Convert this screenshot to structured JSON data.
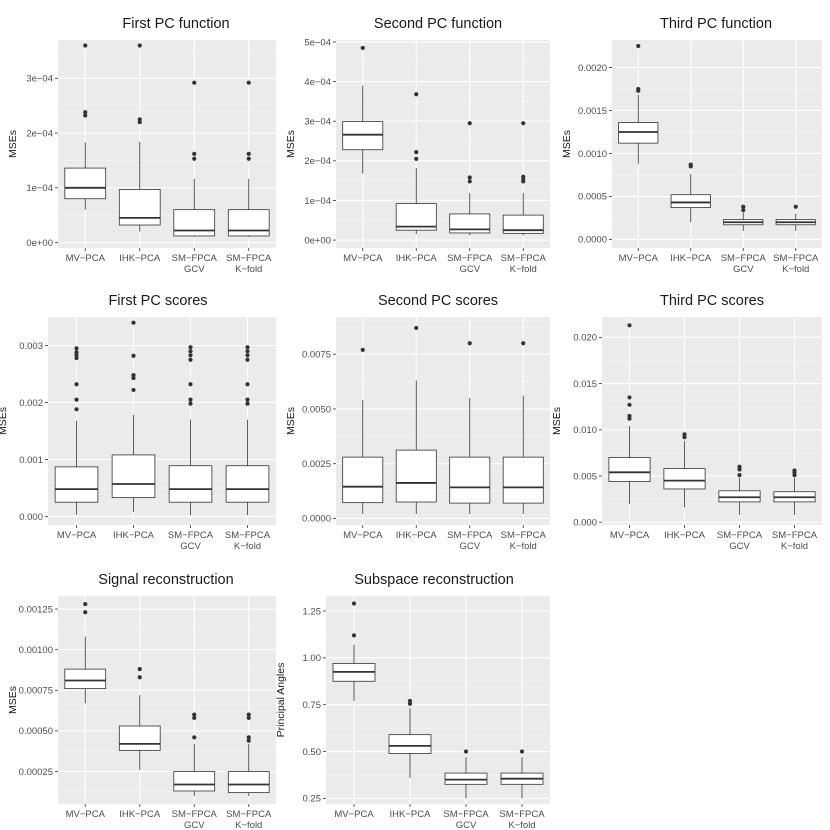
{
  "figure": {
    "colors": {
      "panel_bg": "#EBEBEB",
      "grid_major": "#FFFFFF",
      "box_fill": "#FFFFFF",
      "box_line": "#333333",
      "outlier": "#333333"
    }
  },
  "chart_data": [
    {
      "type": "boxplot",
      "title": "First PC function",
      "ylabel": "MSEs",
      "ylim": [
        -1e-05,
        0.00037
      ],
      "yticks": [
        0,
        0.0001,
        0.0002,
        0.0003
      ],
      "yticklabels": [
        "0e+00",
        "1e−04",
        "2e−04",
        "3e−04"
      ],
      "categories": [
        [
          "MV−PCA"
        ],
        [
          "IHK−PCA"
        ],
        [
          "SM−FPCA",
          "GCV"
        ],
        [
          "SM−FPCA",
          "K−fold"
        ]
      ],
      "boxes": [
        {
          "whisker_low": 6e-05,
          "q1": 8e-05,
          "median": 0.0001,
          "q3": 0.000136,
          "whisker_high": 0.000183,
          "outliers": [
            0.000232,
            0.000238,
            0.00036
          ]
        },
        {
          "whisker_low": 2e-05,
          "q1": 3.2e-05,
          "median": 4.5e-05,
          "q3": 9.7e-05,
          "whisker_high": 0.000184,
          "outliers": [
            0.00022,
            0.000225,
            0.00036
          ]
        },
        {
          "whisker_low": 1e-05,
          "q1": 1.2e-05,
          "median": 2.2e-05,
          "q3": 6e-05,
          "whisker_high": 0.000116,
          "outliers": [
            0.000153,
            0.000162,
            0.000292
          ]
        },
        {
          "whisker_low": 1e-05,
          "q1": 1.2e-05,
          "median": 2.2e-05,
          "q3": 6e-05,
          "whisker_high": 0.000116,
          "outliers": [
            0.000153,
            0.000162,
            0.000292
          ]
        }
      ]
    },
    {
      "type": "boxplot",
      "title": "Second PC function",
      "ylabel": "MSEs",
      "ylim": [
        -2e-05,
        0.000505
      ],
      "yticks": [
        0,
        0.0001,
        0.0002,
        0.0003,
        0.0004,
        0.0005
      ],
      "yticklabels": [
        "0e+00",
        "1e−04",
        "2e−04",
        "3e−04",
        "4e−04",
        "5e−04"
      ],
      "categories": [
        [
          "MV−PCA"
        ],
        [
          "IHK−PCA"
        ],
        [
          "SM−FPCA",
          "GCV"
        ],
        [
          "SM−FPCA",
          "K−fold"
        ]
      ],
      "boxes": [
        {
          "whisker_low": 0.000168,
          "q1": 0.000228,
          "median": 0.000266,
          "q3": 0.000299,
          "whisker_high": 0.00039,
          "outliers": [
            0.000485
          ]
        },
        {
          "whisker_low": 1.5e-05,
          "q1": 2.5e-05,
          "median": 3.4e-05,
          "q3": 9.2e-05,
          "whisker_high": 0.000182,
          "outliers": [
            0.000205,
            0.000222,
            0.000368
          ]
        },
        {
          "whisker_low": 1.2e-05,
          "q1": 1.8e-05,
          "median": 2.7e-05,
          "q3": 6.6e-05,
          "whisker_high": 0.000119,
          "outliers": [
            0.000148,
            0.000158,
            0.000295
          ]
        },
        {
          "whisker_low": 1.2e-05,
          "q1": 1.7e-05,
          "median": 2.5e-05,
          "q3": 6.3e-05,
          "whisker_high": 0.000119,
          "outliers": [
            0.000148,
            0.000153,
            0.00016,
            0.000295
          ]
        }
      ]
    },
    {
      "type": "boxplot",
      "title": "Third PC function",
      "ylabel": "MSEs",
      "ylim": [
        -0.0001,
        0.00232
      ],
      "yticks": [
        0,
        0.0005,
        0.001,
        0.0015,
        0.002
      ],
      "yticklabels": [
        "0.0000",
        "0.0005",
        "0.0010",
        "0.0015",
        "0.0020"
      ],
      "categories": [
        [
          "MV−PCA"
        ],
        [
          "IHK−PCA"
        ],
        [
          "SM−FPCA",
          "GCV"
        ],
        [
          "SM−FPCA",
          "K−fold"
        ]
      ],
      "boxes": [
        {
          "whisker_low": 0.00088,
          "q1": 0.00112,
          "median": 0.00125,
          "q3": 0.00136,
          "whisker_high": 0.00168,
          "outliers": [
            0.00173,
            0.00175,
            0.00225
          ]
        },
        {
          "whisker_low": 0.0002,
          "q1": 0.00037,
          "median": 0.00043,
          "q3": 0.00052,
          "whisker_high": 0.00076,
          "outliers": [
            0.00085,
            0.00087
          ]
        },
        {
          "whisker_low": 0.0001,
          "q1": 0.00017,
          "median": 0.0002,
          "q3": 0.00023,
          "whisker_high": 0.00031,
          "outliers": [
            0.00034,
            0.00038
          ]
        },
        {
          "whisker_low": 0.0001,
          "q1": 0.00017,
          "median": 0.0002,
          "q3": 0.00023,
          "whisker_high": 0.0003,
          "outliers": [
            0.00038
          ]
        }
      ]
    },
    {
      "type": "boxplot",
      "title": "First PC scores",
      "ylabel": "MSEs",
      "ylim": [
        -0.00015,
        0.0035
      ],
      "yticks": [
        0,
        0.001,
        0.002,
        0.003
      ],
      "yticklabels": [
        "0.000",
        "0.001",
        "0.002",
        "0.003"
      ],
      "categories": [
        [
          "MV−PCA"
        ],
        [
          "IHK−PCA"
        ],
        [
          "SM−FPCA",
          "GCV"
        ],
        [
          "SM−FPCA",
          "K−fold"
        ]
      ],
      "boxes": [
        {
          "whisker_low": 3e-05,
          "q1": 0.00025,
          "median": 0.00048,
          "q3": 0.00087,
          "whisker_high": 0.00168,
          "outliers": [
            0.00188,
            0.00205,
            0.00232,
            0.00278,
            0.00283,
            0.00288,
            0.00295
          ]
        },
        {
          "whisker_low": 8e-05,
          "q1": 0.00033,
          "median": 0.00057,
          "q3": 0.00108,
          "whisker_high": 0.00178,
          "outliers": [
            0.00222,
            0.00243,
            0.00248,
            0.00282,
            0.0034
          ]
        },
        {
          "whisker_low": 2e-05,
          "q1": 0.00025,
          "median": 0.00048,
          "q3": 0.00089,
          "whisker_high": 0.0017,
          "outliers": [
            0.00198,
            0.00205,
            0.00232,
            0.00275,
            0.00283,
            0.0029,
            0.00297
          ]
        },
        {
          "whisker_low": 2e-05,
          "q1": 0.00025,
          "median": 0.00048,
          "q3": 0.00089,
          "whisker_high": 0.0017,
          "outliers": [
            0.00198,
            0.00205,
            0.00232,
            0.00275,
            0.00283,
            0.0029,
            0.00297
          ]
        }
      ]
    },
    {
      "type": "boxplot",
      "title": "Second PC scores",
      "ylabel": "MSEs",
      "ylim": [
        -0.0003,
        0.0092
      ],
      "yticks": [
        0,
        0.0025,
        0.005,
        0.0075
      ],
      "yticklabels": [
        "0.0000",
        "0.0025",
        "0.0050",
        "0.0075"
      ],
      "categories": [
        [
          "MV−PCA"
        ],
        [
          "IHK−PCA"
        ],
        [
          "SM−FPCA",
          "GCV"
        ],
        [
          "SM−FPCA",
          "K−fold"
        ]
      ],
      "boxes": [
        {
          "whisker_low": 0.0002,
          "q1": 0.00072,
          "median": 0.00145,
          "q3": 0.0028,
          "whisker_high": 0.0054,
          "outliers": [
            0.0077
          ]
        },
        {
          "whisker_low": 0.0002,
          "q1": 0.00075,
          "median": 0.00162,
          "q3": 0.00312,
          "whisker_high": 0.0063,
          "outliers": [
            0.0087
          ]
        },
        {
          "whisker_low": 0.0002,
          "q1": 0.0007,
          "median": 0.00142,
          "q3": 0.0028,
          "whisker_high": 0.0055,
          "outliers": [
            0.008
          ]
        },
        {
          "whisker_low": 0.0002,
          "q1": 0.0007,
          "median": 0.00142,
          "q3": 0.0028,
          "whisker_high": 0.0056,
          "outliers": [
            0.008
          ]
        }
      ]
    },
    {
      "type": "boxplot",
      "title": "Third PC scores",
      "ylabel": "MSEs",
      "ylim": [
        -0.0003,
        0.0222
      ],
      "yticks": [
        0,
        0.005,
        0.01,
        0.015,
        0.02
      ],
      "yticklabels": [
        "0.000",
        "0.005",
        "0.010",
        "0.015",
        "0.020"
      ],
      "categories": [
        [
          "MV−PCA"
        ],
        [
          "IHK−PCA"
        ],
        [
          "SM−FPCA",
          "GCV"
        ],
        [
          "SM−FPCA",
          "K−fold"
        ]
      ],
      "boxes": [
        {
          "whisker_low": 0.002,
          "q1": 0.0044,
          "median": 0.0054,
          "q3": 0.007,
          "whisker_high": 0.0104,
          "outliers": [
            0.0112,
            0.0115,
            0.0127,
            0.0135,
            0.0213
          ]
        },
        {
          "whisker_low": 0.0016,
          "q1": 0.0036,
          "median": 0.0045,
          "q3": 0.0058,
          "whisker_high": 0.0088,
          "outliers": [
            0.0092,
            0.0095
          ]
        },
        {
          "whisker_low": 0.0008,
          "q1": 0.0022,
          "median": 0.0027,
          "q3": 0.0034,
          "whisker_high": 0.0048,
          "outliers": [
            0.0051,
            0.0057,
            0.006
          ]
        },
        {
          "whisker_low": 0.0008,
          "q1": 0.0022,
          "median": 0.0027,
          "q3": 0.0033,
          "whisker_high": 0.0048,
          "outliers": [
            0.0051,
            0.0054,
            0.0056
          ]
        }
      ]
    },
    {
      "type": "boxplot",
      "title": "Signal reconstruction",
      "ylabel": "MSEs",
      "ylim": [
        5e-05,
        0.00133
      ],
      "yticks": [
        0.00025,
        0.0005,
        0.00075,
        0.001,
        0.00125
      ],
      "yticklabels": [
        "0.00025",
        "0.00050",
        "0.00075",
        "0.00100",
        "0.00125"
      ],
      "categories": [
        [
          "MV−PCA"
        ],
        [
          "IHK−PCA"
        ],
        [
          "SM−FPCA",
          "GCV"
        ],
        [
          "SM−FPCA",
          "K−fold"
        ]
      ],
      "boxes": [
        {
          "whisker_low": 0.00067,
          "q1": 0.00076,
          "median": 0.00081,
          "q3": 0.00088,
          "whisker_high": 0.00108,
          "outliers": [
            0.00123,
            0.00128
          ]
        },
        {
          "whisker_low": 0.00026,
          "q1": 0.00038,
          "median": 0.00042,
          "q3": 0.00053,
          "whisker_high": 0.00072,
          "outliers": [
            0.00083,
            0.00088
          ]
        },
        {
          "whisker_low": 0.0001,
          "q1": 0.00013,
          "median": 0.00017,
          "q3": 0.00025,
          "whisker_high": 0.00042,
          "outliers": [
            0.00046,
            0.00058,
            0.0006
          ]
        },
        {
          "whisker_low": 0.0001,
          "q1": 0.00012,
          "median": 0.00017,
          "q3": 0.00025,
          "whisker_high": 0.00042,
          "outliers": [
            0.00044,
            0.00046,
            0.00058,
            0.0006
          ]
        }
      ]
    },
    {
      "type": "boxplot",
      "title": "Subspace reconstruction",
      "ylabel": "Principal Angles",
      "ylim": [
        0.22,
        1.33
      ],
      "yticks": [
        0.25,
        0.5,
        0.75,
        1.0,
        1.25
      ],
      "yticklabels": [
        "0.25",
        "0.50",
        "0.75",
        "1.00",
        "1.25"
      ],
      "categories": [
        [
          "MV−PCA"
        ],
        [
          "IHK−PCA"
        ],
        [
          "SM−FPCA",
          "GCV"
        ],
        [
          "SM−FPCA",
          "K−fold"
        ]
      ],
      "boxes": [
        {
          "whisker_low": 0.77,
          "q1": 0.875,
          "median": 0.925,
          "q3": 0.97,
          "whisker_high": 1.07,
          "outliers": [
            1.12,
            1.29
          ]
        },
        {
          "whisker_low": 0.36,
          "q1": 0.49,
          "median": 0.53,
          "q3": 0.59,
          "whisker_high": 0.73,
          "outliers": [
            0.755,
            0.77
          ]
        },
        {
          "whisker_low": 0.25,
          "q1": 0.325,
          "median": 0.35,
          "q3": 0.385,
          "whisker_high": 0.47,
          "outliers": [
            0.5
          ]
        },
        {
          "whisker_low": 0.25,
          "q1": 0.325,
          "median": 0.355,
          "q3": 0.385,
          "whisker_high": 0.47,
          "outliers": [
            0.5
          ]
        }
      ]
    }
  ]
}
